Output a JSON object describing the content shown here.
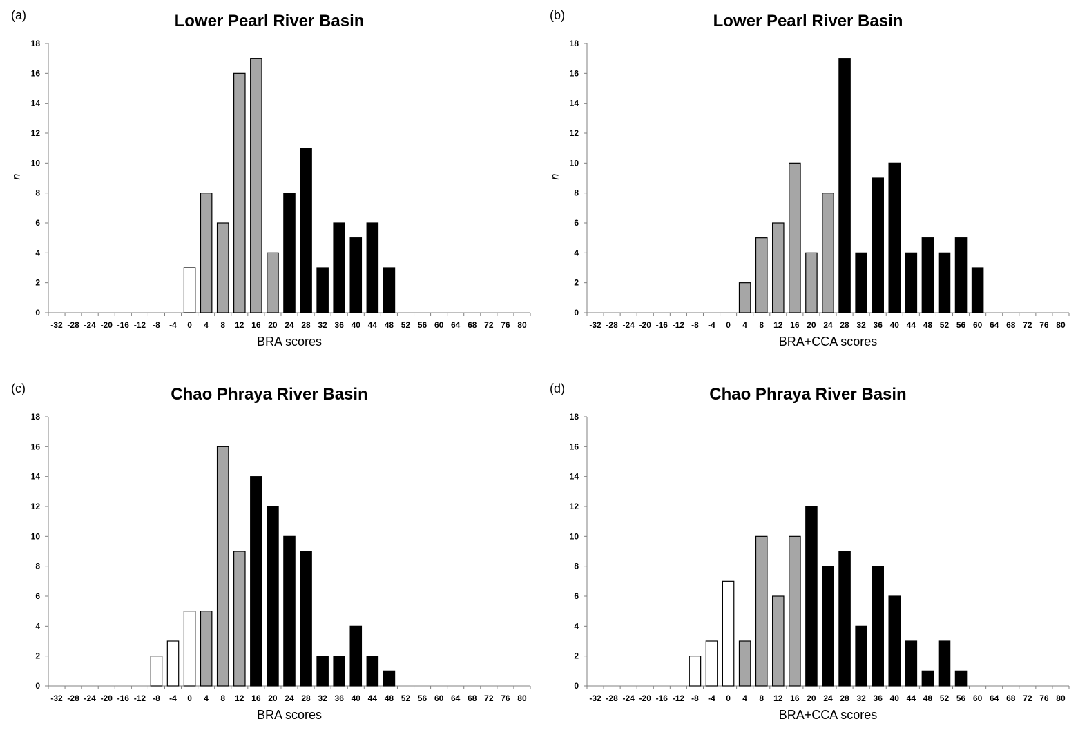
{
  "chart_data": [
    {
      "type": "bar",
      "panel_label": "(a)",
      "title": "Lower Pearl River Basin",
      "xlabel": "BRA scores",
      "ylabel": "n",
      "ylim": [
        0,
        18
      ],
      "yticks": [
        "0",
        "2",
        "4",
        "6",
        "8",
        "10",
        "12",
        "14",
        "16",
        "18"
      ],
      "categories": [
        "-32",
        "-28",
        "-24",
        "-20",
        "-16",
        "-12",
        "-8",
        "-4",
        "0",
        "4",
        "8",
        "12",
        "16",
        "20",
        "24",
        "28",
        "32",
        "36",
        "40",
        "44",
        "48",
        "52",
        "56",
        "60",
        "64",
        "68",
        "72",
        "76",
        "80"
      ],
      "values": [
        0,
        0,
        0,
        0,
        0,
        0,
        0,
        0,
        3,
        8,
        6,
        16,
        17,
        4,
        8,
        11,
        3,
        6,
        5,
        6,
        3,
        0,
        0,
        0,
        0,
        0,
        0,
        0,
        0
      ],
      "fills": [
        "w",
        "w",
        "w",
        "w",
        "w",
        "w",
        "w",
        "w",
        "w",
        "g",
        "g",
        "g",
        "g",
        "g",
        "k",
        "k",
        "k",
        "k",
        "k",
        "k",
        "k",
        "k",
        "k",
        "k",
        "k",
        "k",
        "k",
        "k",
        "k"
      ]
    },
    {
      "type": "bar",
      "panel_label": "(b)",
      "title": "Lower Pearl River Basin",
      "xlabel": "BRA+CCA scores",
      "ylabel": "n",
      "ylim": [
        0,
        18
      ],
      "yticks": [
        "0",
        "2",
        "4",
        "6",
        "8",
        "10",
        "12",
        "14",
        "16",
        "18"
      ],
      "categories": [
        "-32",
        "-28",
        "-24",
        "-20",
        "-16",
        "-12",
        "-8",
        "-4",
        "0",
        "4",
        "8",
        "12",
        "16",
        "20",
        "24",
        "28",
        "32",
        "36",
        "40",
        "44",
        "48",
        "52",
        "56",
        "60",
        "64",
        "68",
        "72",
        "76",
        "80"
      ],
      "values": [
        0,
        0,
        0,
        0,
        0,
        0,
        0,
        0,
        0,
        2,
        5,
        6,
        10,
        4,
        8,
        17,
        4,
        9,
        10,
        4,
        5,
        4,
        5,
        3,
        0,
        0,
        0,
        0,
        0
      ],
      "fills": [
        "w",
        "w",
        "w",
        "w",
        "w",
        "w",
        "w",
        "w",
        "w",
        "g",
        "g",
        "g",
        "g",
        "g",
        "g",
        "k",
        "k",
        "k",
        "k",
        "k",
        "k",
        "k",
        "k",
        "k",
        "k",
        "k",
        "k",
        "k",
        "k"
      ]
    },
    {
      "type": "bar",
      "panel_label": "(c)",
      "title": "Chao Phraya River Basin",
      "xlabel": "BRA scores",
      "ylabel": "",
      "ylim": [
        0,
        18
      ],
      "yticks": [
        "0",
        "2",
        "4",
        "6",
        "8",
        "10",
        "12",
        "14",
        "16",
        "18"
      ],
      "categories": [
        "-32",
        "-28",
        "-24",
        "-20",
        "-16",
        "-12",
        "-8",
        "-4",
        "0",
        "4",
        "8",
        "12",
        "16",
        "20",
        "24",
        "28",
        "32",
        "36",
        "40",
        "44",
        "48",
        "52",
        "56",
        "60",
        "64",
        "68",
        "72",
        "76",
        "80"
      ],
      "values": [
        0,
        0,
        0,
        0,
        0,
        0,
        2,
        3,
        5,
        5,
        16,
        9,
        14,
        12,
        10,
        9,
        2,
        2,
        4,
        2,
        1,
        0,
        0,
        0,
        0,
        0,
        0,
        0,
        0
      ],
      "fills": [
        "w",
        "w",
        "w",
        "w",
        "w",
        "w",
        "w",
        "w",
        "w",
        "g",
        "g",
        "g",
        "k",
        "k",
        "k",
        "k",
        "k",
        "k",
        "k",
        "k",
        "k",
        "k",
        "k",
        "k",
        "k",
        "k",
        "k",
        "k",
        "k"
      ]
    },
    {
      "type": "bar",
      "panel_label": "(d)",
      "title": "Chao Phraya River Basin",
      "xlabel": "BRA+CCA scores",
      "ylabel": "",
      "ylim": [
        0,
        18
      ],
      "yticks": [
        "0",
        "2",
        "4",
        "6",
        "8",
        "10",
        "12",
        "14",
        "16",
        "18"
      ],
      "categories": [
        "-32",
        "-28",
        "-24",
        "-20",
        "-16",
        "-12",
        "-8",
        "-4",
        "0",
        "4",
        "8",
        "12",
        "16",
        "20",
        "24",
        "28",
        "32",
        "36",
        "40",
        "44",
        "48",
        "52",
        "56",
        "60",
        "64",
        "68",
        "72",
        "76",
        "80"
      ],
      "values": [
        0,
        0,
        0,
        0,
        0,
        0,
        2,
        3,
        7,
        3,
        10,
        6,
        10,
        12,
        8,
        9,
        4,
        8,
        6,
        3,
        1,
        3,
        1,
        0,
        0,
        0,
        0,
        0,
        0
      ],
      "fills": [
        "w",
        "w",
        "w",
        "w",
        "w",
        "w",
        "w",
        "w",
        "w",
        "g",
        "g",
        "g",
        "g",
        "k",
        "k",
        "k",
        "k",
        "k",
        "k",
        "k",
        "k",
        "k",
        "k",
        "k",
        "k",
        "k",
        "k",
        "k",
        "k"
      ]
    }
  ],
  "colors": {
    "w": "#ffffff",
    "g": "#a6a6a6",
    "k": "#000000",
    "axis": "#808080"
  }
}
